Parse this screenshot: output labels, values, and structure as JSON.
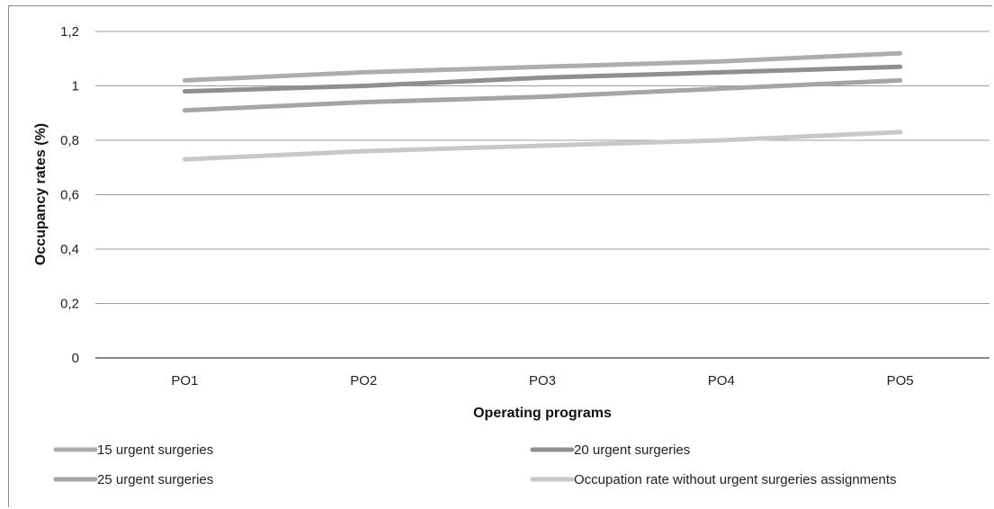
{
  "chart_data": {
    "type": "line",
    "title": "",
    "xlabel": "Operating programs",
    "ylabel": "Occupancy rates (%)",
    "categories": [
      "PO1",
      "PO2",
      "PO3",
      "PO4",
      "PO5"
    ],
    "ylim": [
      0,
      1.2
    ],
    "yticks": [
      {
        "value": 0,
        "label": "0"
      },
      {
        "value": 0.2,
        "label": "0,2"
      },
      {
        "value": 0.4,
        "label": "0,4"
      },
      {
        "value": 0.6,
        "label": "0,6"
      },
      {
        "value": 0.8,
        "label": "0,8"
      },
      {
        "value": 1.0,
        "label": "1"
      },
      {
        "value": 1.2,
        "label": "1,2"
      }
    ],
    "grid": true,
    "legend_position": "bottom",
    "series": [
      {
        "name": "15 urgent surgeries",
        "color": "#adadad",
        "values": [
          1.02,
          1.05,
          1.07,
          1.09,
          1.12
        ]
      },
      {
        "name": "20 urgent surgeries",
        "color": "#8f8f8f",
        "values": [
          0.98,
          1.0,
          1.03,
          1.05,
          1.07
        ]
      },
      {
        "name": "25 urgent surgeries",
        "color": "#a5a5a5",
        "values": [
          0.91,
          0.94,
          0.96,
          0.99,
          1.02
        ]
      },
      {
        "name": "Occupation rate without urgent surgeries assignments",
        "color": "#c8c8c8",
        "values": [
          0.73,
          0.76,
          0.78,
          0.8,
          0.83
        ]
      }
    ]
  }
}
